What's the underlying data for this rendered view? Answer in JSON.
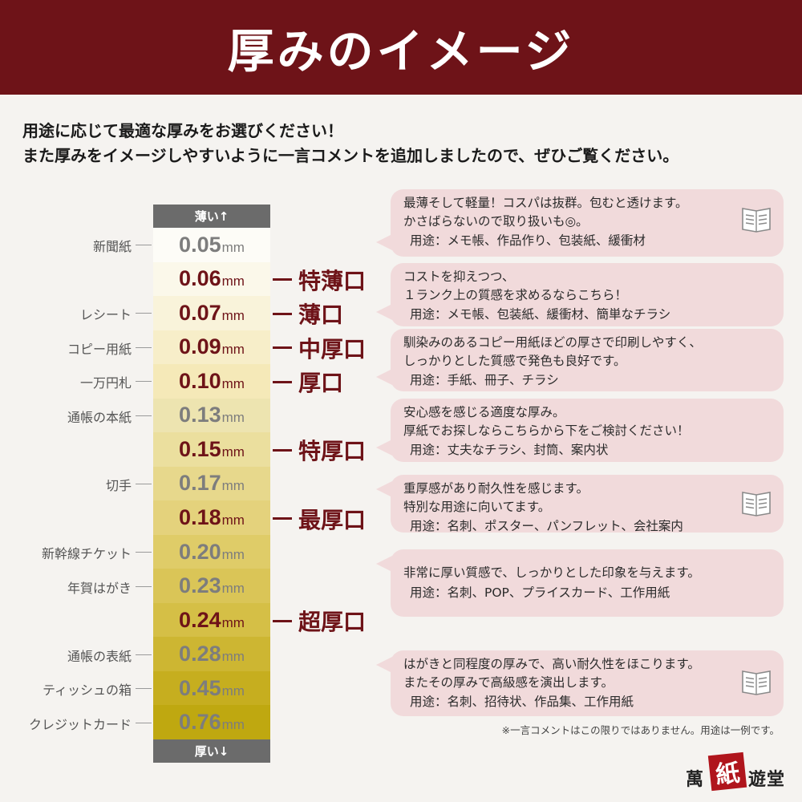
{
  "title": "厚みのイメージ",
  "intro": {
    "line1": "用途に応じて最適な厚みをお選びください！",
    "line2": "また厚みをイメージしやすいように一言コメントを追加しましたので、ぜひご覧ください。"
  },
  "scale": {
    "top_label": "薄い↑",
    "bottom_label": "厚い↓",
    "unit": "mm",
    "rows": [
      {
        "value": "0.05",
        "ref": "新聞紙",
        "grade": "",
        "highlight": false
      },
      {
        "value": "0.06",
        "ref": "",
        "grade": "特薄口",
        "highlight": true
      },
      {
        "value": "0.07",
        "ref": "レシート",
        "grade": "薄口",
        "highlight": true
      },
      {
        "value": "0.09",
        "ref": "コピー用紙",
        "grade": "中厚口",
        "highlight": true
      },
      {
        "value": "0.10",
        "ref": "一万円札",
        "grade": "厚口",
        "highlight": true
      },
      {
        "value": "0.13",
        "ref": "通帳の本紙",
        "grade": "",
        "highlight": false
      },
      {
        "value": "0.15",
        "ref": "",
        "grade": "特厚口",
        "highlight": true
      },
      {
        "value": "0.17",
        "ref": "切手",
        "grade": "",
        "highlight": false
      },
      {
        "value": "0.18",
        "ref": "",
        "grade": "最厚口",
        "highlight": true
      },
      {
        "value": "0.20",
        "ref": "新幹線チケット",
        "grade": "",
        "highlight": false
      },
      {
        "value": "0.23",
        "ref": "年賀はがき",
        "grade": "",
        "highlight": false
      },
      {
        "value": "0.24",
        "ref": "",
        "grade": "超厚口",
        "highlight": true
      },
      {
        "value": "0.28",
        "ref": "通帳の表紙",
        "grade": "",
        "highlight": false
      },
      {
        "value": "0.45",
        "ref": "ティッシュの箱",
        "grade": "",
        "highlight": false
      },
      {
        "value": "0.76",
        "ref": "クレジットカード",
        "grade": "",
        "highlight": false
      }
    ],
    "colors": [
      "#fdfcf7",
      "#fbf8ea",
      "#f9f3da",
      "#f7eec9",
      "#f5e9b8",
      "#ede4b0",
      "#ebdf9e",
      "#e7d88c",
      "#e4d27c",
      "#dfcc68",
      "#dac557",
      "#d5bf46",
      "#cdb632",
      "#c6ae1f",
      "#bfa810"
    ]
  },
  "comments": [
    {
      "lines": [
        "最薄そして軽量！コスパは抜群。包むと透けます。",
        "かさばらないので取り扱いも◎。"
      ],
      "use": "用途：メモ帳、作品作り、包装紙、緩衝材",
      "icon": "book-icon"
    },
    {
      "lines": [
        "コストを抑えつつ、",
        "１ランク上の質感を求めるならこちら！"
      ],
      "use": "用途：メモ帳、包装紙、緩衝材、簡単なチラシ",
      "icon": ""
    },
    {
      "lines": [
        "馴染みのあるコピー用紙ほどの厚さで印刷しやすく、",
        "しっかりとした質感で発色も良好です。"
      ],
      "use": "用途：手紙、冊子、チラシ",
      "icon": ""
    },
    {
      "lines": [
        "安心感を感じる適度な厚み。",
        "厚紙でお探しならこちらから下をご検討ください！"
      ],
      "use": "用途：丈夫なチラシ、封筒、案内状",
      "icon": ""
    },
    {
      "lines": [
        "重厚感があり耐久性を感じます。",
        "特別な用途に向いてます。"
      ],
      "use": "用途：名刺、ポスター、パンフレット、会社案内",
      "icon": "book-icon"
    },
    {
      "lines": [
        "非常に厚い質感で、しっかりとした印象を与えます。"
      ],
      "use": "用途：名刺、POP、プライスカード、工作用紙",
      "icon": ""
    },
    {
      "lines": [
        "はがきと同程度の厚みで、高い耐久性をほこります。",
        "またその厚みで高級感を演出します。"
      ],
      "use": "用途：名刺、招待状、作品集、工作用紙",
      "icon": "book-icon"
    }
  ],
  "footnote": "※一言コメントはこの限りではありません。用途は一例です。",
  "logo": {
    "part1": "萬",
    "stamp": "紙",
    "part2": "遊堂"
  },
  "accent_color": "#6e1318"
}
